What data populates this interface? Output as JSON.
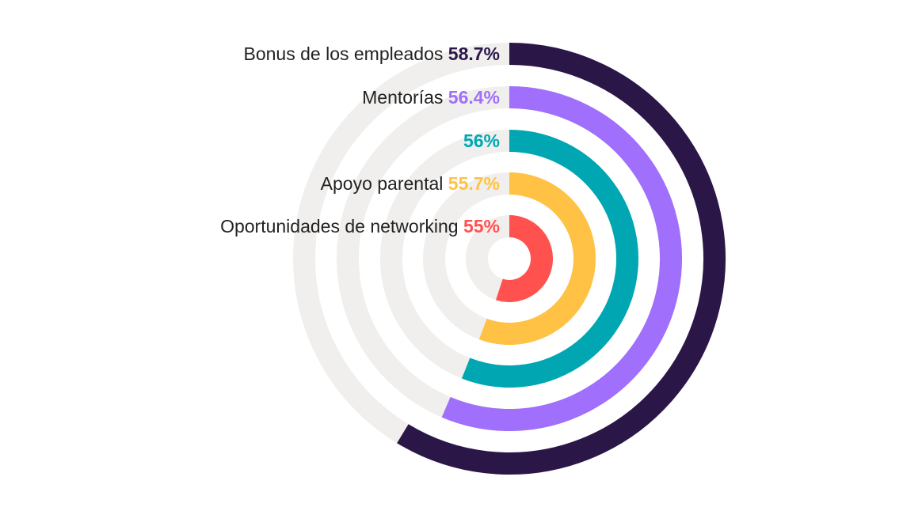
{
  "chart_data": {
    "type": "radial-bar",
    "unit": "%",
    "max": 100,
    "series": [
      {
        "name": "Bonus de los empleados",
        "value": 58.7,
        "value_label": "58.7%",
        "color": "#2a1748"
      },
      {
        "name": "Mentorías",
        "value": 56.4,
        "value_label": "56.4%",
        "color": "#a06ffb"
      },
      {
        "name": "",
        "value": 56,
        "value_label": "56%",
        "color": "#00a7b2"
      },
      {
        "name": "Apoyo parental",
        "value": 55.7,
        "value_label": "55.7%",
        "color": "#ffc245"
      },
      {
        "name": "Oportunidades de networking",
        "value": 55,
        "value_label": "55%",
        "color": "#ff524f"
      }
    ],
    "track_color": "#f0efed",
    "legend": "labels-left-of-ring-start"
  }
}
